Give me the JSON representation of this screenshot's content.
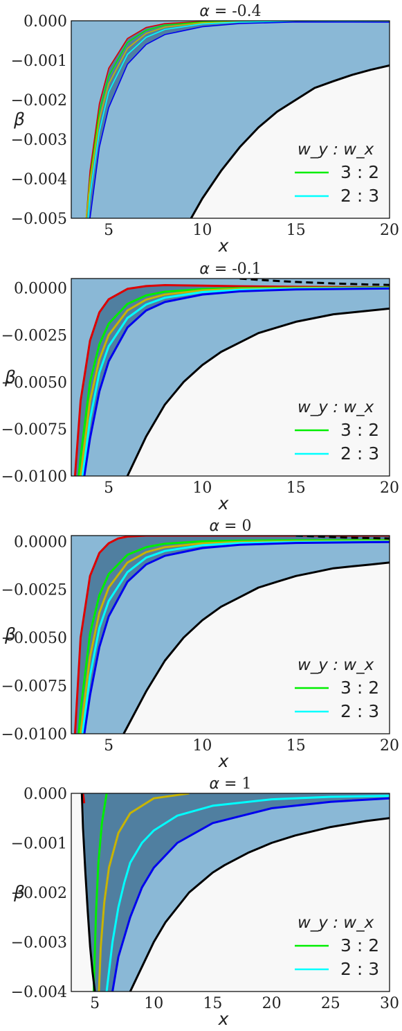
{
  "legend_title": "w_y : w_x",
  "chart_data": [
    {
      "type": "line",
      "title_prefix": "α =",
      "title_value": "-0.4",
      "xlabel": "x",
      "ylabel": "β",
      "xlim": [
        3,
        20
      ],
      "ylim": [
        -0.005,
        0.0
      ],
      "xticks": [
        5,
        10,
        15,
        20
      ],
      "yticks": [
        -0.005,
        -0.004,
        -0.003,
        -0.002,
        -0.001,
        0.0
      ],
      "ytick_labels": [
        "−0.005",
        "−0.004",
        "−0.003",
        "−0.002",
        "−0.001",
        "0.000"
      ],
      "legend": {
        "position": "lower-right",
        "entries": [
          {
            "label": "3 : 2",
            "color": "#00ee00"
          },
          {
            "label": "2 : 3",
            "color": "#00ffff"
          }
        ]
      },
      "series": [
        {
          "color": "#dd0000",
          "x": [
            3.8,
            4.0,
            4.5,
            5.0,
            6.0,
            7.0,
            8.0,
            10.0,
            12.0,
            15.0,
            20.0
          ],
          "y": [
            -0.005,
            -0.0038,
            -0.0021,
            -0.0012,
            -0.00045,
            -0.00017,
            -7e-05,
            -2e-05,
            -5e-06,
            0.0,
            0.0
          ]
        },
        {
          "color": "#00ee00",
          "x": [
            3.8,
            4.0,
            4.5,
            5.0,
            6.0,
            7.0,
            8.0,
            10.0,
            12.0,
            15.0,
            20.0
          ],
          "y": [
            -0.005,
            -0.004,
            -0.0023,
            -0.0014,
            -0.00055,
            -0.00024,
            -0.00011,
            -3e-05,
            -1e-05,
            0.0,
            0.0
          ]
        },
        {
          "color": "#c8b400",
          "x": [
            3.8,
            4.0,
            4.5,
            5.0,
            6.0,
            7.0,
            8.0,
            10.0,
            12.0,
            15.0,
            20.0
          ],
          "y": [
            -0.005,
            -0.0041,
            -0.0025,
            -0.0016,
            -0.0007,
            -0.00032,
            -0.00016,
            -5e-05,
            -2e-05,
            0.0,
            0.0
          ]
        },
        {
          "color": "#00ffff",
          "x": [
            3.9,
            4.0,
            4.5,
            5.0,
            6.0,
            7.0,
            8.0,
            10.0,
            12.0,
            15.0,
            20.0
          ],
          "y": [
            -0.005,
            -0.0044,
            -0.0028,
            -0.0018,
            -0.00085,
            -0.00042,
            -0.00022,
            -8e-05,
            -3e-05,
            -1e-05,
            0.0
          ]
        },
        {
          "color": "#0000ee",
          "x": [
            4.0,
            4.5,
            5.0,
            6.0,
            7.0,
            8.0,
            10.0,
            12.0,
            15.0,
            20.0
          ],
          "y": [
            -0.005,
            -0.0032,
            -0.0022,
            -0.0011,
            -0.0006,
            -0.00035,
            -0.00015,
            -7e-05,
            -3e-05,
            -3.5e-05
          ]
        },
        {
          "color": "#000000",
          "x": [
            9.4,
            10.0,
            11.0,
            12.0,
            13.0,
            14.0,
            15.0,
            16.0,
            17.0,
            18.0,
            19.0,
            20.0
          ],
          "y": [
            -0.005,
            -0.0045,
            -0.0038,
            -0.0032,
            -0.0027,
            -0.0023,
            -0.002,
            -0.0017,
            -0.00153,
            -0.00137,
            -0.00124,
            -0.00113
          ]
        }
      ]
    },
    {
      "type": "line",
      "title_prefix": "α =",
      "title_value": "-0.1",
      "xlabel": "x",
      "ylabel": "β",
      "xlim": [
        3,
        20
      ],
      "ylim": [
        -0.01,
        0.0005
      ],
      "xticks": [
        5,
        10,
        15,
        20
      ],
      "yticks": [
        -0.01,
        -0.0075,
        -0.005,
        -0.0025,
        0.0
      ],
      "ytick_labels": [
        "−0.0100",
        "−0.0075",
        "−0.0050",
        "−0.0025",
        "0.0000"
      ],
      "legend": {
        "position": "lower-right",
        "entries": [
          {
            "label": "3 : 2",
            "color": "#00ee00"
          },
          {
            "label": "2 : 3",
            "color": "#00ffff"
          }
        ]
      },
      "series": [
        {
          "color": "#dd0000",
          "x": [
            3.2,
            3.5,
            4.0,
            4.5,
            5.0,
            6.0,
            7.0,
            8.0,
            10.0,
            12.0,
            15.0,
            20.0
          ],
          "y": [
            -0.01,
            -0.006,
            -0.0028,
            -0.0013,
            -0.0006,
            -5e-05,
            0.0001,
            0.00015,
            0.00012,
            9e-05,
            6e-05,
            4e-05
          ]
        },
        {
          "color": "#00ee00",
          "x": [
            3.4,
            3.5,
            4.0,
            4.5,
            5.0,
            6.0,
            7.0,
            8.0,
            10.0,
            12.0,
            15.0,
            20.0
          ],
          "y": [
            -0.01,
            -0.009,
            -0.005,
            -0.003,
            -0.0019,
            -0.00085,
            -0.0004,
            -0.0002,
            -6e-05,
            -1e-05,
            1e-05,
            2e-05
          ]
        },
        {
          "color": "#c8b400",
          "x": [
            3.5,
            4.0,
            4.5,
            5.0,
            6.0,
            7.0,
            8.0,
            10.0,
            12.0,
            15.0,
            20.0
          ],
          "y": [
            -0.01,
            -0.006,
            -0.0038,
            -0.0025,
            -0.0012,
            -0.00062,
            -0.00035,
            -0.00013,
            -5e-05,
            -1e-05,
            0.0
          ]
        },
        {
          "color": "#00ffff",
          "x": [
            3.6,
            4.0,
            4.5,
            5.0,
            6.0,
            7.0,
            8.0,
            10.0,
            12.0,
            15.0,
            20.0
          ],
          "y": [
            -0.01,
            -0.007,
            -0.0045,
            -0.0031,
            -0.0016,
            -0.00088,
            -0.00052,
            -0.00022,
            -0.0001,
            -4e-05,
            -1e-05
          ]
        },
        {
          "color": "#0000ee",
          "x": [
            3.7,
            4.0,
            4.5,
            5.0,
            6.0,
            7.0,
            8.0,
            10.0,
            12.0,
            15.0,
            20.0
          ],
          "y": [
            -0.01,
            -0.008,
            -0.0055,
            -0.0039,
            -0.0021,
            -0.0012,
            -0.00075,
            -0.00035,
            -0.00018,
            -8e-05,
            -3e-05
          ]
        },
        {
          "color": "#000000",
          "x": [
            6.0,
            7.0,
            8.0,
            9.0,
            10.0,
            11.0,
            12.0,
            13.0,
            14.0,
            15.0,
            16.0,
            17.0,
            18.0,
            19.0,
            20.0
          ],
          "y": [
            -0.01,
            -0.0079,
            -0.0062,
            -0.005,
            -0.0041,
            -0.0034,
            -0.0029,
            -0.0024,
            -0.0021,
            -0.0018,
            -0.0016,
            -0.0014,
            -0.0013,
            -0.0012,
            -0.0011
          ]
        },
        {
          "color": "#000000",
          "dashed": true,
          "x": [
            12.0,
            13.0,
            14.0,
            15.0,
            16.0,
            17.0,
            18.0,
            19.0,
            20.0
          ],
          "y": [
            0.0005,
            0.00043,
            0.00037,
            0.00032,
            0.00028,
            0.00024,
            0.00021,
            0.00018,
            0.00016
          ]
        }
      ]
    },
    {
      "type": "line",
      "title_prefix": "α =",
      "title_value": "0",
      "xlabel": "x",
      "ylabel": "β",
      "xlim": [
        3,
        20
      ],
      "ylim": [
        -0.01,
        0.0003
      ],
      "xticks": [
        5,
        10,
        15,
        20
      ],
      "yticks": [
        -0.01,
        -0.0075,
        -0.005,
        -0.0025,
        0.0
      ],
      "ytick_labels": [
        "−0.0100",
        "−0.0075",
        "−0.0050",
        "−0.0025",
        "0.0000"
      ],
      "legend": {
        "position": "lower-right",
        "entries": [
          {
            "label": "3 : 2",
            "color": "#00ee00"
          },
          {
            "label": "2 : 3",
            "color": "#00ffff"
          }
        ]
      },
      "series": [
        {
          "color": "#dd0000",
          "x": [
            3.2,
            3.5,
            4.0,
            4.5,
            5.0,
            5.5,
            6.0,
            7.0,
            8.0,
            10.0,
            12.0,
            15.0,
            20.0
          ],
          "y": [
            -0.01,
            -0.005,
            -0.0018,
            -0.0006,
            -0.0001,
            0.00015,
            0.00025,
            0.0003,
            0.0003,
            0.0003,
            0.0003,
            0.0003,
            0.0003
          ]
        },
        {
          "color": "#00ee00",
          "x": [
            3.4,
            3.5,
            4.0,
            4.5,
            5.0,
            6.0,
            7.0,
            8.0,
            10.0,
            12.0,
            15.0,
            20.0
          ],
          "y": [
            -0.01,
            -0.0088,
            -0.0048,
            -0.0028,
            -0.0017,
            -0.0007,
            -0.0003,
            -0.00012,
            0.0,
            4e-05,
            6e-05,
            6e-05
          ]
        },
        {
          "color": "#c8b400",
          "x": [
            3.5,
            4.0,
            4.5,
            5.0,
            6.0,
            7.0,
            8.0,
            10.0,
            12.0,
            15.0,
            20.0
          ],
          "y": [
            -0.01,
            -0.006,
            -0.0037,
            -0.0024,
            -0.0011,
            -0.00056,
            -0.0003,
            -0.0001,
            -3e-05,
            0.0,
            2e-05
          ]
        },
        {
          "color": "#00ffff",
          "x": [
            3.6,
            4.0,
            4.5,
            5.0,
            6.0,
            7.0,
            8.0,
            10.0,
            12.0,
            15.0,
            20.0
          ],
          "y": [
            -0.01,
            -0.007,
            -0.0045,
            -0.0031,
            -0.0016,
            -0.00085,
            -0.0005,
            -0.0002,
            -9e-05,
            -3e-05,
            -1e-05
          ]
        },
        {
          "color": "#0000ee",
          "x": [
            3.7,
            4.0,
            4.5,
            5.0,
            6.0,
            7.0,
            8.0,
            10.0,
            12.0,
            15.0,
            20.0
          ],
          "y": [
            -0.01,
            -0.008,
            -0.0055,
            -0.0039,
            -0.0021,
            -0.0012,
            -0.00075,
            -0.00035,
            -0.00018,
            -8e-05,
            -3e-05
          ]
        },
        {
          "color": "#000000",
          "x": [
            5.8,
            7.0,
            8.0,
            9.0,
            10.0,
            11.0,
            12.0,
            13.0,
            14.0,
            15.0,
            16.0,
            17.0,
            18.0,
            19.0,
            20.0
          ],
          "y": [
            -0.01,
            -0.0078,
            -0.0062,
            -0.005,
            -0.0041,
            -0.0034,
            -0.0029,
            -0.0024,
            -0.0021,
            -0.0018,
            -0.0016,
            -0.0014,
            -0.0013,
            -0.0012,
            -0.0011
          ]
        },
        {
          "color": "#000000",
          "dashed": true,
          "x": [
            15.0,
            16.0,
            17.0,
            18.0,
            19.0,
            20.0
          ],
          "y": [
            0.0003,
            0.00026,
            0.00022,
            0.00019,
            0.00017,
            0.00015
          ]
        }
      ]
    },
    {
      "type": "line",
      "title_prefix": "α =",
      "title_value": "1",
      "xlabel": "x",
      "ylabel": "β",
      "xlim": [
        3,
        30
      ],
      "ylim": [
        -0.004,
        0.0
      ],
      "xticks": [
        5,
        10,
        15,
        20,
        25,
        30
      ],
      "yticks": [
        -0.004,
        -0.003,
        -0.002,
        -0.001,
        0.0
      ],
      "ytick_labels": [
        "−0.004",
        "−0.003",
        "−0.002",
        "−0.001",
        "0.000"
      ],
      "legend": {
        "position": "lower-right",
        "entries": [
          {
            "label": "3 : 2",
            "color": "#00ee00"
          },
          {
            "label": "2 : 3",
            "color": "#00ffff"
          }
        ]
      },
      "series": [
        {
          "color": "#dd0000",
          "x": [
            4.0,
            4.05,
            4.1
          ],
          "y": [
            0.0,
            -0.0001,
            -0.0002
          ]
        },
        {
          "color": "#00ee00",
          "x": [
            6.0,
            5.6,
            5.3,
            5.1,
            5.0,
            4.9
          ],
          "y": [
            0.0,
            -0.0006,
            -0.0014,
            -0.0024,
            -0.0032,
            -0.004
          ]
        },
        {
          "color": "#c8b400",
          "x": [
            13.0,
            10.0,
            8.0,
            7.0,
            6.2,
            5.8,
            5.5,
            5.35
          ],
          "y": [
            0.0,
            -0.0001,
            -0.0004,
            -0.0008,
            -0.0015,
            -0.0022,
            -0.0031,
            -0.004
          ]
        },
        {
          "color": "#00ffff",
          "x": [
            30.0,
            25.0,
            20.0,
            15.0,
            12.0,
            10.0,
            9.0,
            8.0,
            7.5,
            7.0,
            6.5,
            6.0
          ],
          "y": [
            -5e-05,
            -7e-05,
            -0.00012,
            -0.00025,
            -0.00045,
            -0.00075,
            -0.001,
            -0.0014,
            -0.0018,
            -0.0023,
            -0.003,
            -0.004
          ]
        },
        {
          "color": "#0000ee",
          "x": [
            30.0,
            25.0,
            20.0,
            15.0,
            12.0,
            10.0,
            9.0,
            8.0,
            7.0,
            6.5
          ],
          "y": [
            -0.0001,
            -0.00017,
            -0.0003,
            -0.0006,
            -0.001,
            -0.0015,
            -0.0019,
            -0.0025,
            -0.0033,
            -0.004
          ]
        },
        {
          "color": "#000000",
          "x": [
            8.0,
            9.0,
            10.0,
            11.0,
            12.0,
            13.0,
            14.0,
            15.0,
            16.0,
            18.0,
            20.0,
            22.0,
            25.0,
            28.0,
            30.0
          ],
          "y": [
            -0.004,
            -0.0035,
            -0.003,
            -0.0026,
            -0.0023,
            -0.002,
            -0.0018,
            -0.0016,
            -0.00145,
            -0.0012,
            -0.001,
            -0.00085,
            -0.00068,
            -0.00056,
            -0.0005
          ]
        },
        {
          "color": "#000000",
          "x": [
            3.9,
            4.0,
            4.2,
            4.4,
            4.6,
            4.8,
            5.0
          ],
          "y": [
            0.0,
            -0.0007,
            -0.0016,
            -0.0024,
            -0.0031,
            -0.0036,
            -0.004
          ]
        }
      ]
    }
  ]
}
